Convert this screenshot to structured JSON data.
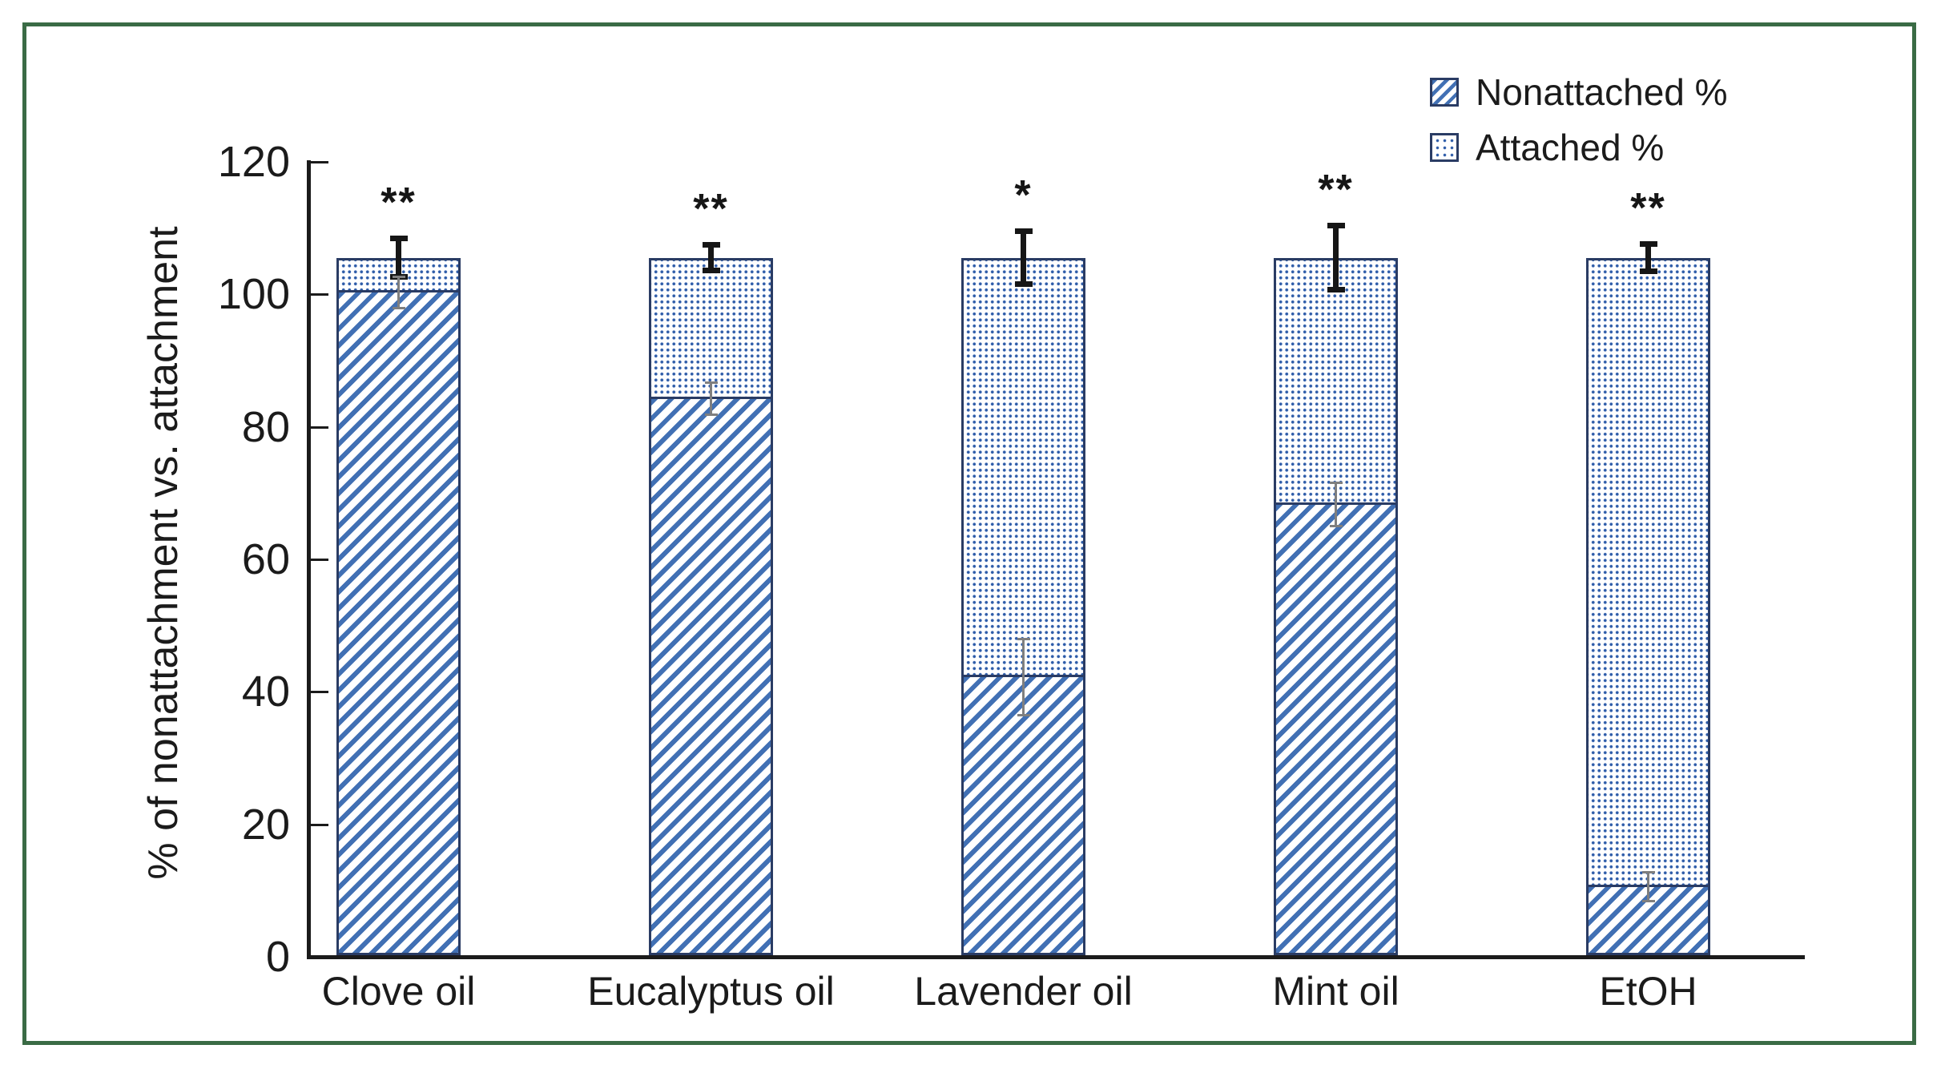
{
  "figure": {
    "kind": "framed scientific bar figure",
    "frame_border_color": "#3a6b45",
    "background_color": "#ffffff"
  },
  "colors": {
    "frame_green": "#3a6b45",
    "hatch_blue": "#4170b4",
    "dot_blue": "#2e5ca8",
    "bar_border_navy": "#2a3c64",
    "axis_ink": "#1b1b1b",
    "error_bar_black": "#161616",
    "error_bar_gray": "#7f7f7f"
  },
  "chart_data": {
    "type": "bar",
    "stacked": true,
    "title": "",
    "xlabel": "",
    "ylabel": "% of nonattachment vs. attachment",
    "ylim": [
      0,
      120
    ],
    "yticks": [
      0,
      20,
      40,
      60,
      80,
      100,
      120
    ],
    "grid": false,
    "legend_position": "top-right",
    "categories": [
      "Clove oil",
      "Eucalyptus oil",
      "Lavender oil",
      "Mint oil",
      "EtOH"
    ],
    "series": [
      {
        "name": "Nonattached %",
        "pattern": "diagonal-hatch",
        "values": [
          100,
          84,
          42,
          68,
          10.3
        ]
      },
      {
        "name": "Attached %",
        "pattern": "dots",
        "values": [
          5.3,
          21.3,
          63.3,
          37.3,
          95.0
        ]
      }
    ],
    "stack_totals": [
      105.3,
      105.3,
      105.3,
      105.3,
      105.3
    ],
    "total_error": [
      3.0,
      2.0,
      4.1,
      4.9,
      2.1
    ],
    "nonattached_error": [
      2.3,
      2.4,
      5.7,
      3.2,
      2.1
    ],
    "significance": [
      "**",
      "**",
      "*",
      "**",
      "**"
    ]
  }
}
